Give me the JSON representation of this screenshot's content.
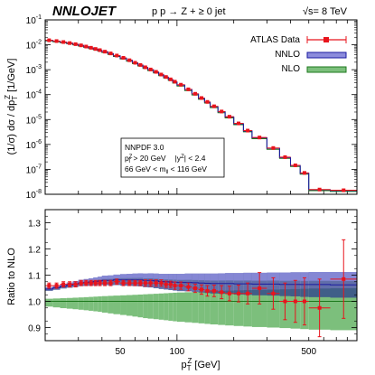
{
  "header": {
    "brand": "NNLOJET",
    "process": "p p → Z + ≥ 0 jet",
    "energy": "√s= 8 TeV"
  },
  "legend": {
    "items": [
      {
        "label": "ATLAS Data",
        "color": "#e8141c"
      },
      {
        "label": "NNLO",
        "color": "#1a1aa0"
      },
      {
        "label": "NLO",
        "color": "#1e7a1e"
      }
    ]
  },
  "infobox": {
    "line1": "NNPDF 3.0",
    "line2a": "p",
    "line2b": "Z",
    "line2c": "T",
    "line2d": " > 20 GeV",
    "line2e": "|y",
    "line2f": "Z",
    "line2g": "| < 2.4",
    "line3a": "66 GeV < m",
    "line3b": "ll",
    "line3c": " < 116 GeV"
  },
  "axes": {
    "top_ylabel": "(1/σ) dσ / dp",
    "top_ylabel_sub": "T",
    "top_ylabel_sup": "Z",
    "top_ylabel_unit": " [1/GeV]",
    "bottom_ylabel": "Ratio to NLO",
    "xlabel": "p",
    "xlabel_sub": "T",
    "xlabel_sup": "Z",
    "xlabel_unit": " [GeV]",
    "x_ticklabels": [
      "50",
      "100",
      "500"
    ],
    "y_top_ticklabels": [
      "10",
      "10",
      "10",
      "10",
      "10",
      "10",
      "10",
      "10"
    ],
    "y_top_exponents": [
      "-1",
      "-2",
      "-3",
      "-4",
      "-5",
      "-6",
      "-7",
      "-8"
    ],
    "y_bottom_ticklabels": [
      "0.9",
      "1.0",
      "1.1",
      "1.2",
      "1.3"
    ]
  },
  "chart_data": [
    {
      "type": "line",
      "title": "",
      "xlabel": "pT^Z [GeV]",
      "ylabel": "(1/σ) dσ / dpT^Z [1/GeV]",
      "xscale": "log",
      "yscale": "log",
      "xlim": [
        20,
        900
      ],
      "ylim": [
        1e-08,
        0.1
      ],
      "grid": false,
      "legend_position": "top-right",
      "bin_edges": [
        20,
        22,
        24,
        26,
        28,
        30,
        32,
        34,
        36,
        38,
        40,
        43,
        46,
        50,
        54,
        58,
        62,
        66,
        70,
        75,
        80,
        85,
        90,
        95,
        100,
        110,
        120,
        130,
        140,
        150,
        165,
        180,
        200,
        225,
        250,
        300,
        350,
        400,
        450,
        500,
        650,
        900
      ],
      "series": [
        {
          "name": "ATLAS Data",
          "values": [
            0.0152,
            0.0141,
            0.0129,
            0.0117,
            0.0106,
            0.0095,
            0.0085,
            0.0076,
            0.0068,
            0.0061,
            0.0053,
            0.0045,
            0.0037,
            0.003,
            0.0024,
            0.0019,
            0.00155,
            0.00125,
            0.00102,
            0.00082,
            0.00064,
            0.00051,
            0.00041,
            0.00033,
            0.00025,
            0.000163,
            0.000108,
            7.3e-05,
            5.1e-05,
            3.4e-05,
            2.1e-05,
            1.3e-05,
            7e-06,
            3.6e-06,
            1.9e-06,
            7.2e-07,
            3.1e-07,
            1.45e-07,
            7.2e-08,
            1.55e-08,
            1.45e-08
          ]
        },
        {
          "name": "NNLO",
          "values": [
            0.015,
            0.0139,
            0.0127,
            0.0116,
            0.0105,
            0.0094,
            0.0084,
            0.0075,
            0.0067,
            0.006,
            0.0052,
            0.0044,
            0.0036,
            0.0029,
            0.0024,
            0.0019,
            0.00153,
            0.00123,
            0.001,
            0.0008,
            0.00063,
            0.0005,
            0.0004,
            0.00032,
            0.00024,
            0.00016,
            0.000106,
            7.1e-05,
            5e-05,
            3.3e-05,
            2.05e-05,
            1.27e-05,
            6.8e-06,
            3.5e-06,
            1.85e-06,
            7e-07,
            3e-07,
            1.42e-07,
            7e-08,
            1.52e-08,
            1.42e-08
          ]
        },
        {
          "name": "NLO",
          "values": [
            0.0143,
            0.0132,
            0.0121,
            0.011,
            0.01,
            0.0089,
            0.0079,
            0.0071,
            0.0063,
            0.0056,
            0.0049,
            0.0041,
            0.0034,
            0.0027,
            0.0022,
            0.00175,
            0.00141,
            0.00113,
            0.00092,
            0.00074,
            0.00058,
            0.00046,
            0.00037,
            0.00029,
            0.00022,
            0.000146,
            9.7e-05,
            6.5e-05,
            4.6e-05,
            3e-05,
            1.88e-05,
            1.16e-05,
            6.2e-06,
            3.2e-06,
            1.7e-06,
            6.4e-07,
            2.75e-07,
            1.3e-07,
            6.4e-08,
            1.4e-08,
            1.3e-08
          ]
        }
      ]
    },
    {
      "type": "line",
      "title": "",
      "xlabel": "pT^Z [GeV]",
      "ylabel": "Ratio to NLO",
      "xscale": "log",
      "xlim": [
        20,
        900
      ],
      "ylim": [
        0.85,
        1.35
      ],
      "grid": false,
      "bin_edges": [
        20,
        22,
        24,
        26,
        28,
        30,
        32,
        34,
        36,
        38,
        40,
        43,
        46,
        50,
        54,
        58,
        62,
        66,
        70,
        75,
        80,
        85,
        90,
        95,
        100,
        110,
        120,
        130,
        140,
        150,
        165,
        180,
        200,
        225,
        250,
        300,
        350,
        400,
        450,
        500,
        650,
        900
      ],
      "series": [
        {
          "name": "ATLAS Data",
          "values": [
            1.06,
            1.06,
            1.065,
            1.065,
            1.065,
            1.07,
            1.07,
            1.07,
            1.07,
            1.07,
            1.07,
            1.07,
            1.075,
            1.07,
            1.07,
            1.07,
            1.07,
            1.07,
            1.07,
            1.07,
            1.07,
            1.065,
            1.065,
            1.06,
            1.06,
            1.055,
            1.05,
            1.045,
            1.04,
            1.04,
            1.035,
            1.03,
            1.03,
            1.03,
            1.05,
            1.03,
            1.0,
            1.0,
            1.0,
            0.975,
            1.085
          ],
          "errors": [
            0.01,
            0.01,
            0.01,
            0.01,
            0.01,
            0.01,
            0.01,
            0.01,
            0.01,
            0.01,
            0.01,
            0.01,
            0.01,
            0.01,
            0.01,
            0.01,
            0.01,
            0.012,
            0.012,
            0.012,
            0.012,
            0.012,
            0.012,
            0.014,
            0.014,
            0.015,
            0.016,
            0.018,
            0.02,
            0.022,
            0.025,
            0.028,
            0.032,
            0.04,
            0.06,
            0.06,
            0.07,
            0.08,
            0.09,
            0.11,
            0.15
          ]
        },
        {
          "name": "NNLO",
          "values": [
            1.047,
            1.052,
            1.058,
            1.062,
            1.066,
            1.07,
            1.072,
            1.074,
            1.076,
            1.078,
            1.08,
            1.08,
            1.082,
            1.082,
            1.082,
            1.082,
            1.082,
            1.08,
            1.08,
            1.078,
            1.076,
            1.075,
            1.074,
            1.073,
            1.072,
            1.072,
            1.071,
            1.07,
            1.069,
            1.068,
            1.068,
            1.068,
            1.067,
            1.067,
            1.066,
            1.066,
            1.065,
            1.065,
            1.064,
            1.064,
            1.063
          ],
          "errors": [
            0.007,
            0.008,
            0.009,
            0.01,
            0.011,
            0.012,
            0.013,
            0.014,
            0.015,
            0.016,
            0.018,
            0.019,
            0.02,
            0.022,
            0.023,
            0.024,
            0.025,
            0.026,
            0.027,
            0.028,
            0.029,
            0.03,
            0.031,
            0.032,
            0.033,
            0.034,
            0.035,
            0.036,
            0.037,
            0.038,
            0.039,
            0.04,
            0.041,
            0.042,
            0.043,
            0.044,
            0.045,
            0.046,
            0.047,
            0.048,
            0.049
          ]
        },
        {
          "name": "NLO",
          "values": [
            1,
            1,
            1,
            1,
            1,
            1,
            1,
            1,
            1,
            1,
            1,
            1,
            1,
            1,
            1,
            1,
            1,
            1,
            1,
            1,
            1,
            1,
            1,
            1,
            1,
            1,
            1,
            1,
            1,
            1,
            1,
            1,
            1,
            1,
            1,
            1,
            1,
            1,
            1,
            1,
            1
          ],
          "errors_up": [
            0.01,
            0.011,
            0.012,
            0.013,
            0.014,
            0.015,
            0.016,
            0.017,
            0.018,
            0.019,
            0.02,
            0.021,
            0.022,
            0.023,
            0.024,
            0.025,
            0.026,
            0.027,
            0.028,
            0.029,
            0.03,
            0.031,
            0.032,
            0.033,
            0.034,
            0.035,
            0.036,
            0.037,
            0.038,
            0.039,
            0.04,
            0.041,
            0.042,
            0.043,
            0.044,
            0.045,
            0.046,
            0.047,
            0.048,
            0.049,
            0.05
          ],
          "errors_down": [
            0.02,
            0.023,
            0.026,
            0.028,
            0.03,
            0.032,
            0.034,
            0.036,
            0.038,
            0.04,
            0.043,
            0.046,
            0.049,
            0.052,
            0.055,
            0.058,
            0.061,
            0.064,
            0.066,
            0.068,
            0.07,
            0.072,
            0.074,
            0.076,
            0.078,
            0.08,
            0.082,
            0.084,
            0.086,
            0.088,
            0.09,
            0.092,
            0.094,
            0.096,
            0.098,
            0.1,
            0.102,
            0.104,
            0.106,
            0.108,
            0.11
          ]
        }
      ]
    }
  ]
}
